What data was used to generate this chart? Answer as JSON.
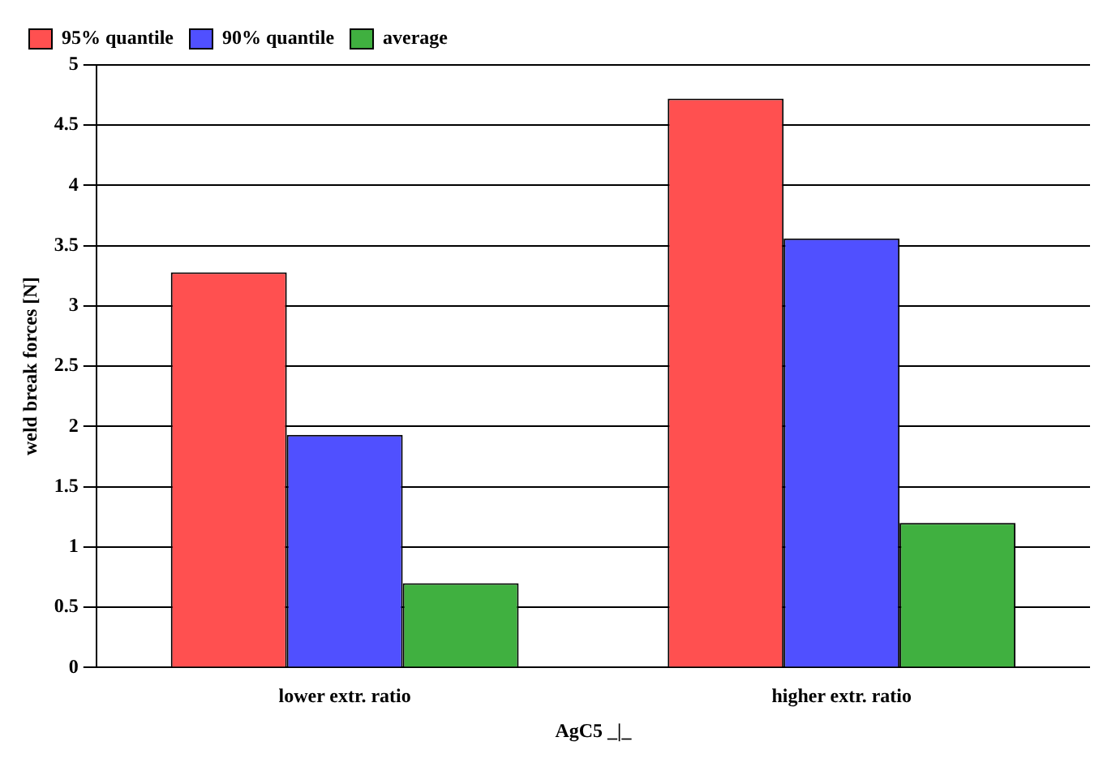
{
  "chart_data": {
    "type": "bar",
    "xlabel": "AgC5 _|_",
    "ylabel": "weld break forces [N]",
    "categories": [
      "lower extr. ratio",
      "higher extr. ratio"
    ],
    "series": [
      {
        "name": "95% quantile",
        "color": "#ff5050",
        "values": [
          3.28,
          4.72
        ]
      },
      {
        "name": "90% quantile",
        "color": "#5050ff",
        "values": [
          1.93,
          3.56
        ]
      },
      {
        "name": "average",
        "color": "#40b040",
        "values": [
          0.7,
          1.2
        ]
      }
    ],
    "ylim": [
      0,
      5
    ],
    "yticks": [
      0,
      0.5,
      1,
      1.5,
      2,
      2.5,
      3,
      3.5,
      4,
      4.5,
      5
    ],
    "grid": "y",
    "legend": "top left"
  }
}
